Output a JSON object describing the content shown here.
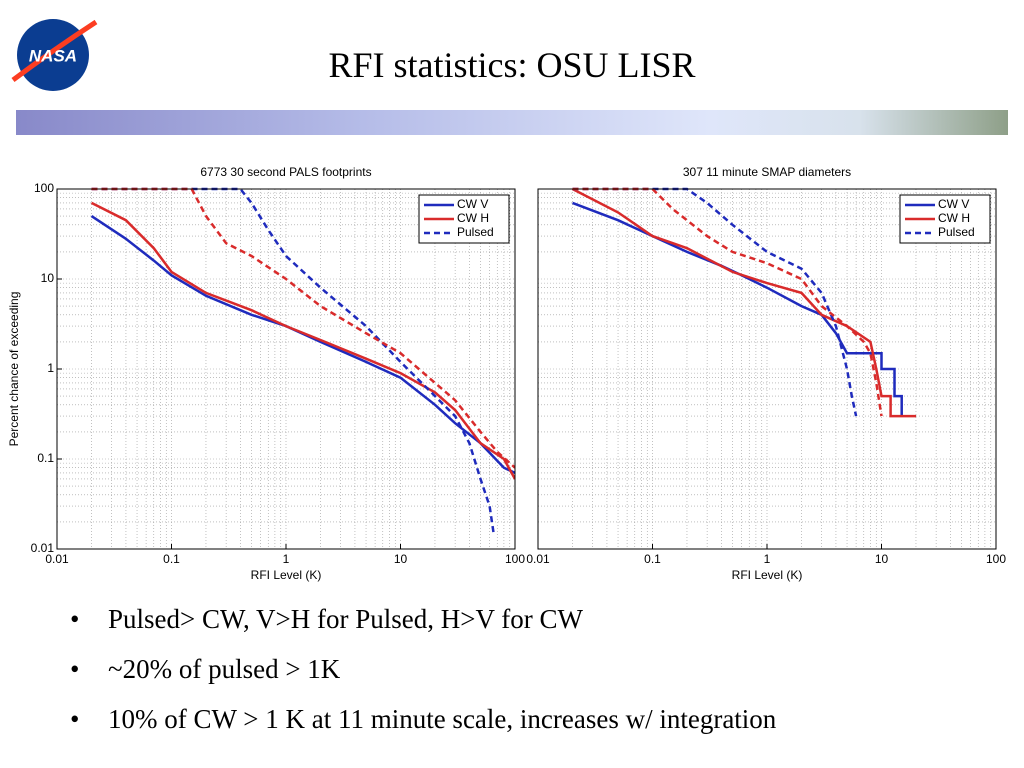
{
  "logo": "NASA",
  "title": "RFI statistics: OSU LISR",
  "bullets": [
    "Pulsed> CW,  V>H for Pulsed, H>V for CW",
    "~20% of pulsed > 1K",
    "10% of CW > 1 K at 11 minute scale, increases w/ integration"
  ],
  "chart_data": [
    {
      "type": "line",
      "title": "6773 30 second PALS footprints",
      "x_label": "RFI Level (K)",
      "y_label": "Percent chance of exceeding",
      "log_x": true,
      "log_y": true,
      "grid": true,
      "legend": "upper right",
      "xlim": [
        0.01,
        100
      ],
      "ylim": [
        0.01,
        100
      ],
      "xticks": [
        0.01,
        0.1,
        1,
        10,
        100
      ],
      "yticks": [
        0.01,
        0.1,
        1,
        10,
        100
      ],
      "series": [
        {
          "name": "CW V",
          "color": "#1f2bbd",
          "dash": false,
          "x": [
            0.02,
            0.04,
            0.07,
            0.1,
            0.2,
            0.5,
            1,
            2,
            5,
            10,
            20,
            30,
            50,
            80,
            100
          ],
          "values": [
            50,
            28,
            16,
            11,
            6.5,
            4,
            3,
            2,
            1.2,
            0.8,
            0.4,
            0.25,
            0.15,
            0.08,
            0.07
          ]
        },
        {
          "name": "CW H",
          "color": "#d92b2b",
          "dash": false,
          "x": [
            0.02,
            0.04,
            0.07,
            0.1,
            0.2,
            0.5,
            1,
            2,
            5,
            10,
            20,
            30,
            50,
            80,
            100
          ],
          "values": [
            70,
            45,
            22,
            12,
            7,
            4.5,
            3,
            2.1,
            1.3,
            0.9,
            0.55,
            0.35,
            0.15,
            0.1,
            0.06
          ]
        },
        {
          "name": "Pulsed",
          "color": "#1f2bbd",
          "dash": true,
          "x": [
            0.02,
            0.4,
            0.5,
            0.7,
            1,
            2,
            5,
            10,
            20,
            30,
            40,
            50,
            60,
            65
          ],
          "values": [
            100,
            100,
            70,
            35,
            18,
            8,
            3,
            1.2,
            0.5,
            0.3,
            0.15,
            0.06,
            0.03,
            0.015
          ]
        },
        {
          "color": "#d92b2b",
          "dash": true,
          "x": [
            0.02,
            0.15,
            0.2,
            0.3,
            0.5,
            1,
            2,
            5,
            10,
            20,
            30,
            50,
            70,
            100
          ],
          "values": [
            100,
            100,
            50,
            25,
            18,
            10,
            5,
            2.5,
            1.5,
            0.7,
            0.45,
            0.2,
            0.12,
            0.08
          ]
        }
      ]
    },
    {
      "type": "line",
      "title": "307 11 minute SMAP diameters",
      "x_label": "RFI Level (K)",
      "log_x": true,
      "log_y": true,
      "grid": true,
      "legend": "upper right",
      "xlim": [
        0.01,
        100
      ],
      "ylim": [
        0.01,
        100
      ],
      "xticks": [
        0.01,
        0.1,
        1,
        10,
        100
      ],
      "series": [
        {
          "name": "CW V",
          "color": "#1f2bbd",
          "dash": false,
          "x": [
            0.02,
            0.05,
            0.1,
            0.2,
            0.4,
            0.6,
            1,
            2,
            3,
            4,
            5,
            10,
            10,
            13,
            13,
            15,
            15
          ],
          "values": [
            70,
            45,
            30,
            20,
            14,
            11,
            8,
            5,
            4,
            2.5,
            1.5,
            1.5,
            1,
            1,
            0.5,
            0.5,
            0.3
          ]
        },
        {
          "name": "CW H",
          "color": "#d92b2b",
          "dash": false,
          "x": [
            0.02,
            0.05,
            0.1,
            0.2,
            0.5,
            1,
            2,
            3,
            5,
            8,
            9,
            10,
            12,
            12,
            20
          ],
          "values": [
            100,
            55,
            30,
            22,
            12,
            9,
            7,
            4,
            3,
            2,
            1,
            0.5,
            0.5,
            0.3,
            0.3
          ]
        },
        {
          "name": "Pulsed",
          "color": "#1f2bbd",
          "dash": true,
          "x": [
            0.02,
            0.2,
            0.3,
            0.5,
            1,
            2,
            3,
            4,
            5,
            5.5,
            6
          ],
          "values": [
            100,
            100,
            70,
            40,
            20,
            13,
            7,
            3,
            1,
            0.5,
            0.3
          ]
        },
        {
          "color": "#d92b2b",
          "dash": true,
          "x": [
            0.02,
            0.1,
            0.15,
            0.3,
            0.5,
            1,
            2,
            3,
            5,
            7,
            8,
            9,
            10
          ],
          "values": [
            100,
            100,
            60,
            30,
            20,
            15,
            10,
            5,
            3,
            2,
            1.5,
            0.7,
            0.3
          ]
        }
      ]
    }
  ]
}
